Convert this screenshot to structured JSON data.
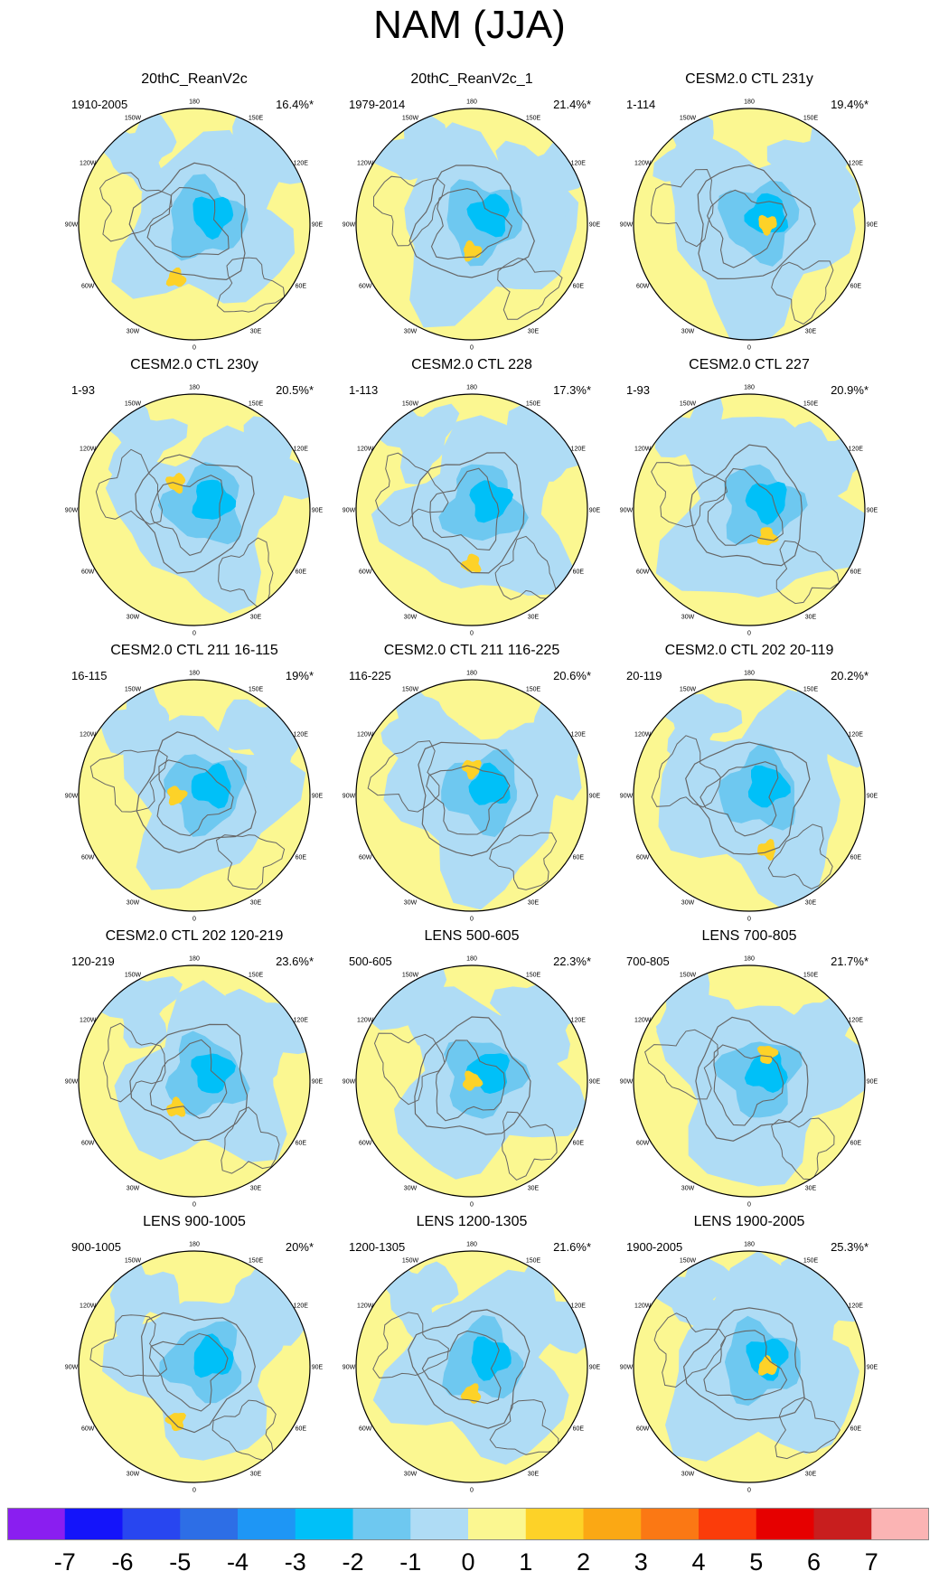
{
  "title": "NAM (JJA)",
  "lon_labels": [
    "180",
    "150E",
    "120E",
    "90E",
    "60E",
    "30E",
    "0",
    "30W",
    "60W",
    "90W",
    "120W",
    "150W"
  ],
  "panels": [
    {
      "title": "20thC_ReanV2c",
      "period": "1910-2005",
      "variance": "16.4%*"
    },
    {
      "title": "20thC_ReanV2c_1",
      "period": "1979-2014",
      "variance": "21.4%*"
    },
    {
      "title": "CESM2.0 CTL 231y",
      "period": "1-114",
      "variance": "19.4%*"
    },
    {
      "title": "CESM2.0 CTL 230y",
      "period": "1-93",
      "variance": "20.5%*"
    },
    {
      "title": "CESM2.0 CTL 228",
      "period": "1-113",
      "variance": "17.3%*"
    },
    {
      "title": "CESM2.0 CTL 227",
      "period": "1-93",
      "variance": "20.9%*"
    },
    {
      "title": "CESM2.0 CTL 211 16-115",
      "period": "16-115",
      "variance": "19%*"
    },
    {
      "title": "CESM2.0 CTL 211 116-225",
      "period": "116-225",
      "variance": "20.6%*"
    },
    {
      "title": "CESM2.0 CTL 202 20-119",
      "period": "20-119",
      "variance": "20.2%*"
    },
    {
      "title": "CESM2.0 CTL 202 120-219",
      "period": "120-219",
      "variance": "23.6%*"
    },
    {
      "title": "LENS 500-605",
      "period": "500-605",
      "variance": "22.3%*"
    },
    {
      "title": "LENS 700-805",
      "period": "700-805",
      "variance": "21.7%*"
    },
    {
      "title": "LENS 900-1005",
      "period": "900-1005",
      "variance": "20%*"
    },
    {
      "title": "LENS 1200-1305",
      "period": "1200-1305",
      "variance": "21.6%*"
    },
    {
      "title": "LENS 1900-2005",
      "period": "1900-2005",
      "variance": "25.3%*"
    }
  ],
  "colorbar": {
    "labels": [
      "-7",
      "-6",
      "-5",
      "-4",
      "-3",
      "-2",
      "-1",
      "0",
      "1",
      "2",
      "3",
      "4",
      "5",
      "6",
      "7"
    ],
    "colors": [
      "#8a1ef0",
      "#1414fa",
      "#2846f0",
      "#2d6ee6",
      "#1e96f5",
      "#00c0f8",
      "#6ec8f0",
      "#afdcf5",
      "#fbf791",
      "#fdd228",
      "#fba814",
      "#fb7814",
      "#fb3c0a",
      "#e60000",
      "#c81e1e",
      "#fbb4b4"
    ]
  },
  "map_colors": {
    "background": "#fbf791",
    "neg1": "#afdcf5",
    "neg2": "#6ec8f0",
    "neg3": "#00c0f8",
    "pos1": "#fdd228",
    "coast": "#666666"
  }
}
